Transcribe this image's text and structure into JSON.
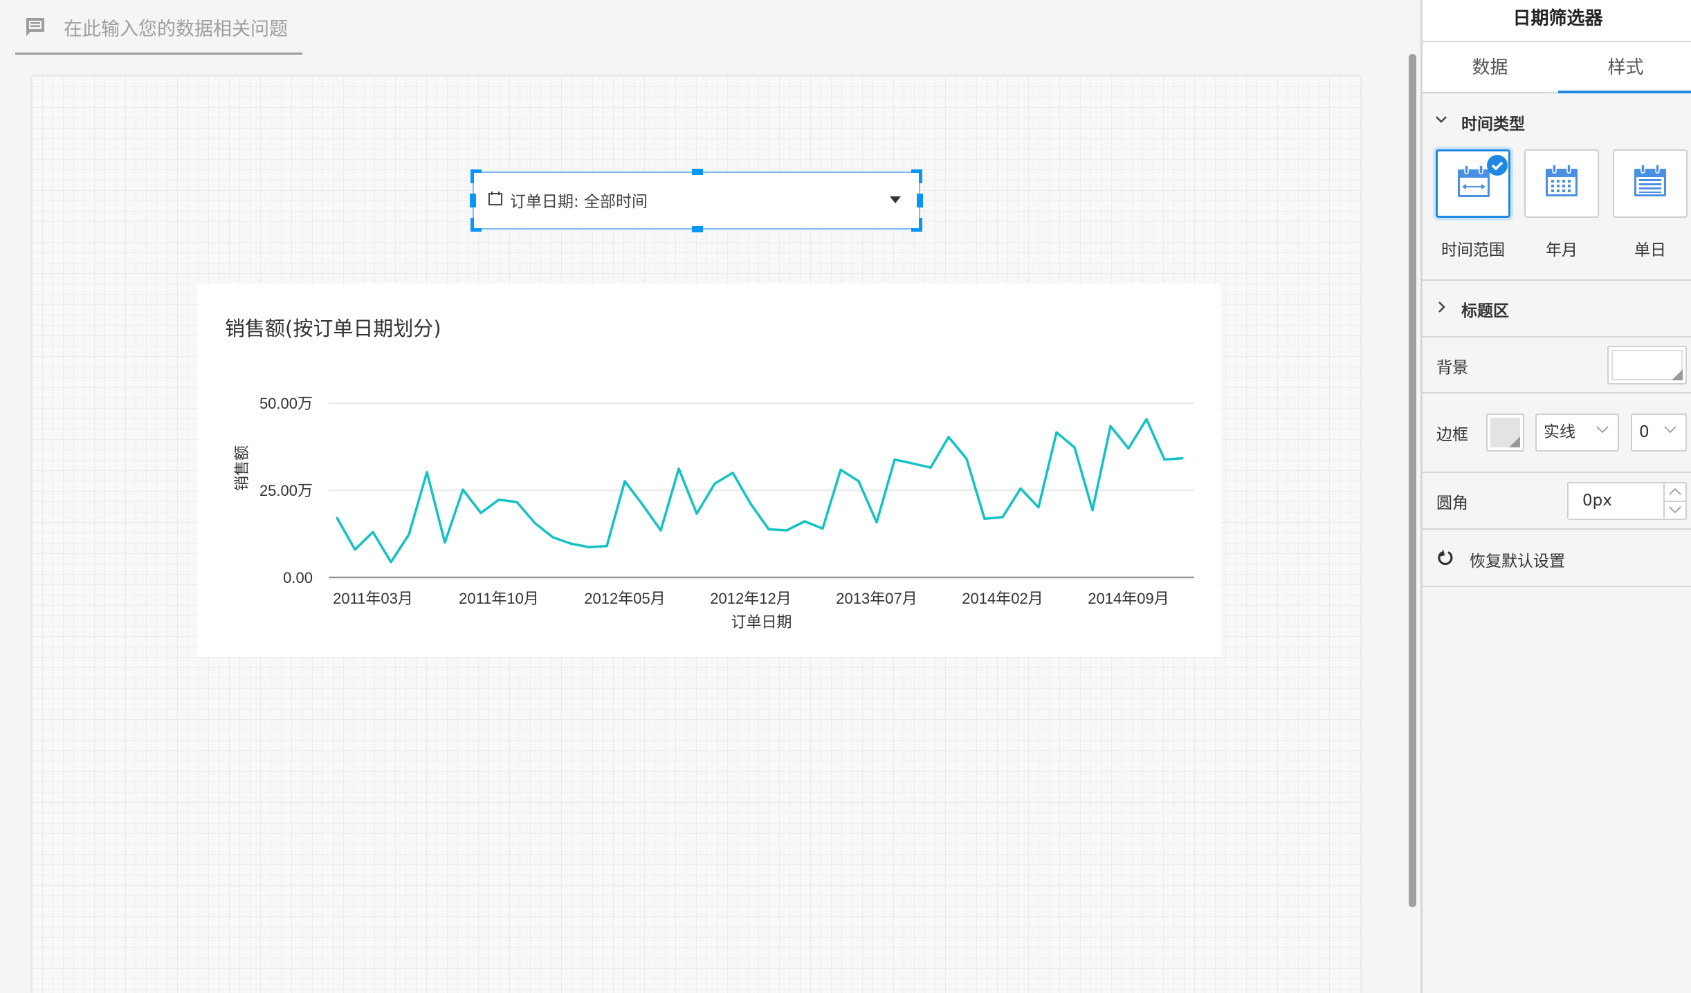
{
  "ask": {
    "placeholder": "在此输入您的数据相关问题",
    "icon": "chat-message-icon"
  },
  "filter_widget": {
    "label": "订单日期: 全部时间",
    "icon": "calendar-icon",
    "accent": "#0795f8"
  },
  "chart_card": {
    "title": "销售额(按订单日期划分)"
  },
  "chart_data": {
    "type": "line",
    "title": "销售额(按订单日期划分)",
    "xlabel": "订单日期",
    "ylabel": "销售额",
    "ylim": [
      0,
      500000
    ],
    "y_ticks": [
      {
        "value": 0,
        "label": "0.00"
      },
      {
        "value": 250000,
        "label": "25.00万"
      },
      {
        "value": 500000,
        "label": "50.00万"
      }
    ],
    "x_ticks": [
      "2011年03月",
      "2011年10月",
      "2012年05月",
      "2012年12月",
      "2013年07月",
      "2014年02月",
      "2014年09月"
    ],
    "grid": "horizontal",
    "color": "#13c2c2",
    "x": [
      "2011年01月",
      "2011年02月",
      "2011年03月",
      "2011年04月",
      "2011年05月",
      "2011年06月",
      "2011年07月",
      "2011年08月",
      "2011年09月",
      "2011年10月",
      "2011年11月",
      "2011年12月",
      "2012年01月",
      "2012年02月",
      "2012年03月",
      "2012年04月",
      "2012年05月",
      "2012年06月",
      "2012年07月",
      "2012年08月",
      "2012年09月",
      "2012年10月",
      "2012年11月",
      "2012年12月",
      "2013年01月",
      "2013年02月",
      "2013年03月",
      "2013年04月",
      "2013年05月",
      "2013年06月",
      "2013年07月",
      "2013年08月",
      "2013年09月",
      "2013年10月",
      "2013年11月",
      "2013年12月",
      "2014年01月",
      "2014年02月",
      "2014年03月",
      "2014年04月",
      "2014年05月",
      "2014年06月",
      "2014年07月",
      "2014年08月",
      "2014年09月",
      "2014年10月",
      "2014年11月",
      "2014年12月"
    ],
    "values": [
      171000,
      80000,
      130000,
      44000,
      123000,
      302000,
      100000,
      252000,
      185000,
      223000,
      216000,
      156000,
      115000,
      97000,
      87000,
      90000,
      276000,
      208000,
      135000,
      312000,
      183000,
      269000,
      300000,
      211000,
      138000,
      135000,
      161000,
      140000,
      309000,
      276000,
      158000,
      338000,
      327000,
      315000,
      403000,
      340000,
      168000,
      173000,
      255000,
      201000,
      416000,
      373000,
      193000,
      434000,
      370000,
      454000,
      338000,
      342000
    ]
  },
  "panel": {
    "title": "日期筛选器",
    "tabs": [
      {
        "label": "数据",
        "active": false
      },
      {
        "label": "样式",
        "active": true
      }
    ],
    "time_type": {
      "heading": "时间类型",
      "options": [
        {
          "label": "时间范围",
          "selected": true
        },
        {
          "label": "年月",
          "selected": false
        },
        {
          "label": "单日",
          "selected": false
        }
      ]
    },
    "title_area": {
      "heading": "标题区",
      "expanded": false
    },
    "background": {
      "label": "背景",
      "color": "#ffffff"
    },
    "border": {
      "label": "边框",
      "color": "#e3e3e3",
      "style": "实线",
      "width": "0"
    },
    "radius": {
      "label": "圆角",
      "value": "0px"
    },
    "reset": {
      "label": "恢复默认设置"
    }
  }
}
